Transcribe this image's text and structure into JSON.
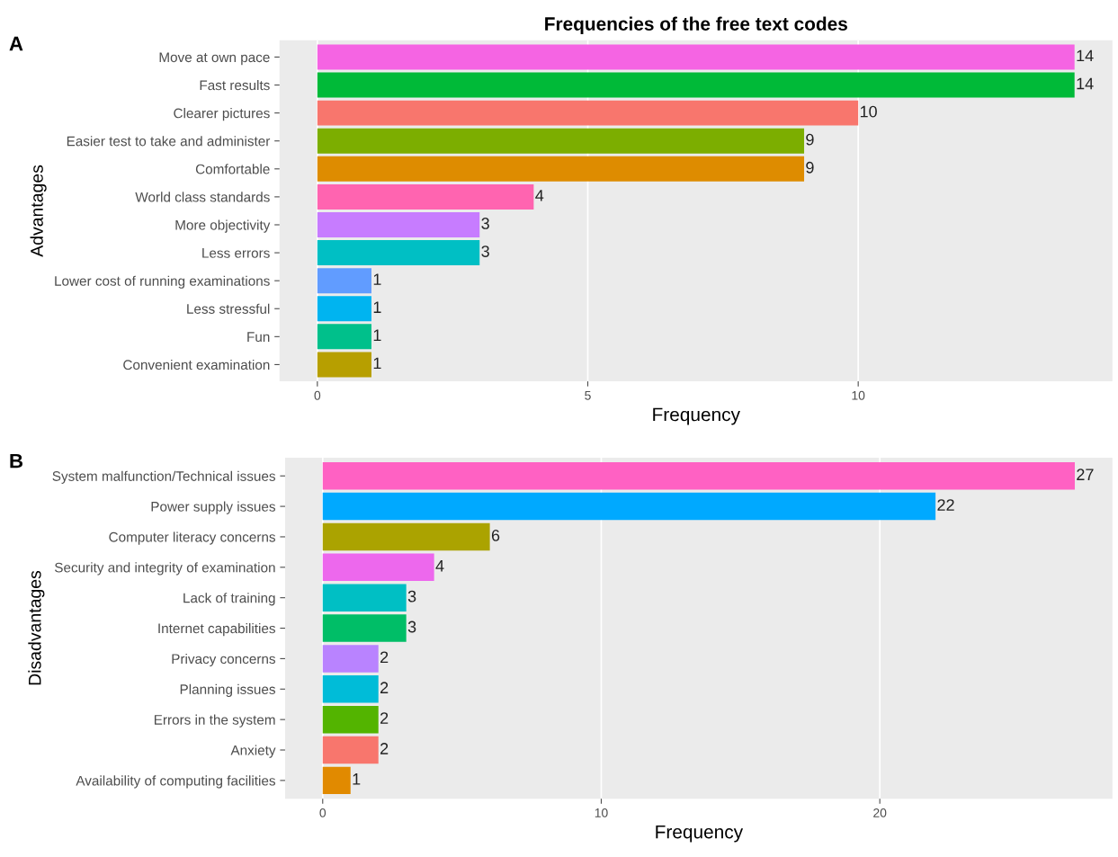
{
  "chart_data": [
    {
      "type": "bar",
      "orientation": "horizontal",
      "title": "Frequencies of the free text codes",
      "xlabel": "Frequency",
      "ylabel": "Advantages",
      "annotations": [
        "A"
      ],
      "categories": [
        "Move at own pace",
        "Fast results",
        "Clearer pictures",
        "Easier test to take and administer",
        "Comfortable",
        "World class standards",
        "More objectivity",
        "Less errors",
        "Lower cost of running examinations",
        "Less stressful",
        "Fun",
        "Convenient examination"
      ],
      "values": [
        14,
        14,
        10,
        9,
        9,
        4,
        3,
        3,
        1,
        1,
        1,
        1
      ],
      "colors": [
        "#f564e3",
        "#00ba38",
        "#f8766d",
        "#7cae00",
        "#de8c00",
        "#ff64b0",
        "#c77cff",
        "#00bfc4",
        "#619cff",
        "#00b4f0",
        "#00c08b",
        "#b79f00"
      ],
      "xlim": [
        -0.7,
        14.7
      ],
      "xticks": [
        0,
        5,
        10
      ],
      "grid": "x",
      "data_labels": true
    },
    {
      "type": "bar",
      "orientation": "horizontal",
      "xlabel": "Frequency",
      "ylabel": "Disadvantages",
      "annotations": [
        "B"
      ],
      "categories": [
        "System malfunction/Technical issues",
        "Power supply issues",
        "Computer literacy concerns",
        "Security and integrity of examination",
        "Lack of training",
        "Internet capabilities",
        "Privacy concerns",
        "Planning issues",
        "Errors in the system",
        "Anxiety",
        "Availability of computing facilities"
      ],
      "values": [
        27,
        22,
        6,
        4,
        3,
        3,
        2,
        2,
        2,
        2,
        1
      ],
      "colors": [
        "#ff61c3",
        "#00a9ff",
        "#aba300",
        "#ed68ed",
        "#00bfc4",
        "#00be67",
        "#b983ff",
        "#00bcd8",
        "#53b400",
        "#f8766d",
        "#e18a00"
      ],
      "xlim": [
        -1.35,
        28.35
      ],
      "xticks": [
        0,
        10,
        20
      ],
      "grid": "x",
      "data_labels": true
    }
  ]
}
